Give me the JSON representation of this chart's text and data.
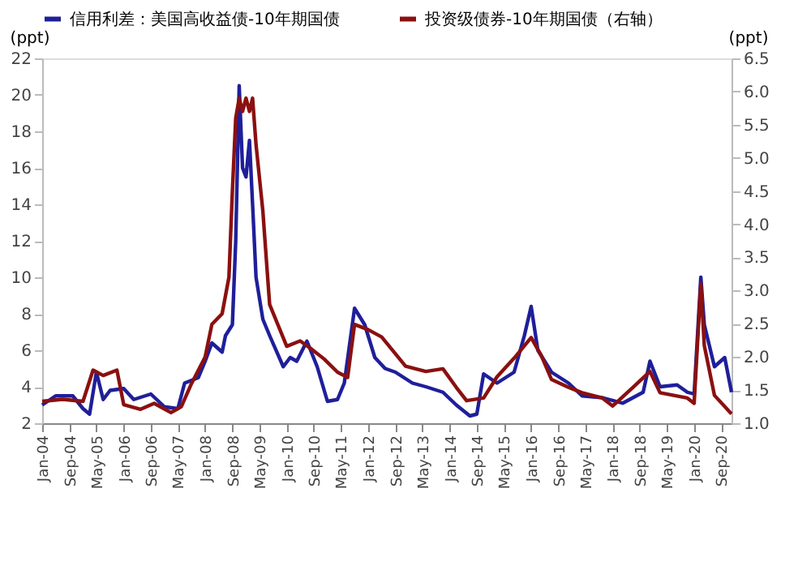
{
  "chart_data": {
    "type": "line",
    "ylabel": "(ppt)",
    "y2label": "(ppt)",
    "series": [
      {
        "name": "信用利差：美国高收益债-10年期国债",
        "color": "#1f1f9a",
        "x": [
          "2004-01",
          "2004-05",
          "2004-10",
          "2005-01",
          "2005-03",
          "2005-05",
          "2005-07",
          "2005-09",
          "2006-01",
          "2006-04",
          "2006-09",
          "2007-01",
          "2007-05",
          "2007-07",
          "2007-11",
          "2008-01",
          "2008-03",
          "2008-06",
          "2008-07",
          "2008-09",
          "2008-10",
          "2008-11",
          "2008-12",
          "2009-01",
          "2009-02",
          "2009-03",
          "2009-04",
          "2009-06",
          "2009-08",
          "2009-12",
          "2010-02",
          "2010-04",
          "2010-07",
          "2010-10",
          "2011-01",
          "2011-04",
          "2011-06",
          "2011-09",
          "2011-12",
          "2012-03",
          "2012-06",
          "2012-09",
          "2013-02",
          "2013-06",
          "2013-11",
          "2014-03",
          "2014-07",
          "2014-09",
          "2014-11",
          "2015-03",
          "2015-08",
          "2015-11",
          "2016-01",
          "2016-03",
          "2016-07",
          "2016-12",
          "2017-04",
          "2017-10",
          "2018-04",
          "2018-10",
          "2018-12",
          "2019-03",
          "2019-08",
          "2019-11",
          "2020-01",
          "2020-03",
          "2020-04",
          "2020-07",
          "2020-10",
          "2020-12"
        ],
        "values": [
          3.0,
          3.5,
          3.5,
          2.8,
          2.5,
          4.8,
          3.3,
          3.8,
          3.9,
          3.3,
          3.6,
          2.9,
          2.8,
          4.2,
          4.5,
          5.4,
          6.4,
          5.9,
          6.8,
          7.4,
          12,
          20.5,
          16,
          15.5,
          17.5,
          14,
          10,
          7.7,
          6.8,
          5.1,
          5.6,
          5.4,
          6.5,
          5.1,
          3.2,
          3.3,
          4.2,
          8.3,
          7.4,
          5.6,
          5.0,
          4.8,
          4.2,
          4.0,
          3.7,
          3.0,
          2.4,
          2.5,
          4.7,
          4.2,
          4.8,
          6.8,
          8.4,
          6.0,
          4.8,
          4.2,
          3.5,
          3.4,
          3.1,
          3.7,
          5.4,
          4.0,
          4.1,
          3.7,
          3.6,
          10.0,
          7.4,
          5.1,
          5.6,
          3.7
        ]
      },
      {
        "name": "投资级债券-10年期国债（右轴）",
        "color": "#8b1010",
        "axis": "y2",
        "x": [
          "2004-01",
          "2004-07",
          "2005-01",
          "2005-04",
          "2005-07",
          "2005-11",
          "2006-01",
          "2006-06",
          "2006-10",
          "2007-03",
          "2007-06",
          "2007-09",
          "2008-01",
          "2008-03",
          "2008-06",
          "2008-08",
          "2008-09",
          "2008-10",
          "2008-11",
          "2008-12",
          "2009-01",
          "2009-02",
          "2009-03",
          "2009-04",
          "2009-06",
          "2009-07",
          "2009-08",
          "2010-01",
          "2010-05",
          "2010-08",
          "2010-12",
          "2011-04",
          "2011-07",
          "2011-09",
          "2012-01",
          "2012-05",
          "2012-12",
          "2013-06",
          "2013-11",
          "2014-03",
          "2014-06",
          "2014-11",
          "2015-03",
          "2015-08",
          "2016-01",
          "2016-04",
          "2016-07",
          "2016-12",
          "2017-04",
          "2017-10",
          "2018-01",
          "2018-07",
          "2018-12",
          "2019-03",
          "2019-11",
          "2020-01",
          "2020-03",
          "2020-04",
          "2020-07",
          "2020-12"
        ],
        "values": [
          1.33,
          1.36,
          1.33,
          1.8,
          1.72,
          1.8,
          1.28,
          1.21,
          1.3,
          1.16,
          1.25,
          1.6,
          2.0,
          2.49,
          2.65,
          3.2,
          4.5,
          5.6,
          5.9,
          5.7,
          5.9,
          5.7,
          5.9,
          5.2,
          4.2,
          3.5,
          2.79,
          2.16,
          2.24,
          2.13,
          1.97,
          1.77,
          1.69,
          2.49,
          2.41,
          2.3,
          1.86,
          1.78,
          1.82,
          1.54,
          1.34,
          1.38,
          1.7,
          1.98,
          2.29,
          2.02,
          1.66,
          1.54,
          1.46,
          1.38,
          1.26,
          1.54,
          1.78,
          1.46,
          1.38,
          1.3,
          3.1,
          2.17,
          1.42,
          1.14
        ]
      }
    ],
    "xlim": [
      "2004-01",
      "2020-12"
    ],
    "xticks": [
      {
        "value": "2004-01",
        "label": "Jan-04"
      },
      {
        "value": "2004-09",
        "label": "Sep-04"
      },
      {
        "value": "2005-05",
        "label": "May-05"
      },
      {
        "value": "2006-01",
        "label": "Jan-06"
      },
      {
        "value": "2006-09",
        "label": "Sep-06"
      },
      {
        "value": "2007-05",
        "label": "May-07"
      },
      {
        "value": "2008-01",
        "label": "Jan-08"
      },
      {
        "value": "2008-09",
        "label": "Sep-08"
      },
      {
        "value": "2009-05",
        "label": "May-09"
      },
      {
        "value": "2010-01",
        "label": "Jan-10"
      },
      {
        "value": "2010-09",
        "label": "Sep-10"
      },
      {
        "value": "2011-05",
        "label": "May-11"
      },
      {
        "value": "2012-01",
        "label": "Jan-12"
      },
      {
        "value": "2012-09",
        "label": "Sep-12"
      },
      {
        "value": "2013-05",
        "label": "May-13"
      },
      {
        "value": "2014-01",
        "label": "Jan-14"
      },
      {
        "value": "2014-09",
        "label": "Sep-14"
      },
      {
        "value": "2015-05",
        "label": "May-15"
      },
      {
        "value": "2016-01",
        "label": "Jan-16"
      },
      {
        "value": "2016-09",
        "label": "Sep-16"
      },
      {
        "value": "2017-05",
        "label": "May-17"
      },
      {
        "value": "2018-01",
        "label": "Jan-18"
      },
      {
        "value": "2018-09",
        "label": "Sep-18"
      },
      {
        "value": "2019-05",
        "label": "May-19"
      },
      {
        "value": "2020-01",
        "label": "Jan-20"
      },
      {
        "value": "2020-09",
        "label": "Sep-20"
      }
    ],
    "ylim": [
      2,
      22
    ],
    "yticks": [
      2,
      4,
      6,
      8,
      10,
      12,
      14,
      16,
      18,
      20,
      22
    ],
    "y2lim": [
      1,
      6.5
    ],
    "y2ticks": [
      {
        "value": 1,
        "label": "1.0"
      },
      {
        "value": 1.5,
        "label": "1.5"
      },
      {
        "value": 2,
        "label": "2.0"
      },
      {
        "value": 2.5,
        "label": "2.5"
      },
      {
        "value": 3,
        "label": "3.0"
      },
      {
        "value": 3.5,
        "label": "3.5"
      },
      {
        "value": 4,
        "label": "4.0"
      },
      {
        "value": 4.5,
        "label": "4.5"
      },
      {
        "value": 5,
        "label": "5.0"
      },
      {
        "value": 5.5,
        "label": "5.5"
      },
      {
        "value": 6,
        "label": "6.0"
      },
      {
        "value": 6.5,
        "label": "6.5"
      }
    ],
    "grid": false,
    "legend": "top",
    "marker": "none",
    "line_style": "solid"
  }
}
